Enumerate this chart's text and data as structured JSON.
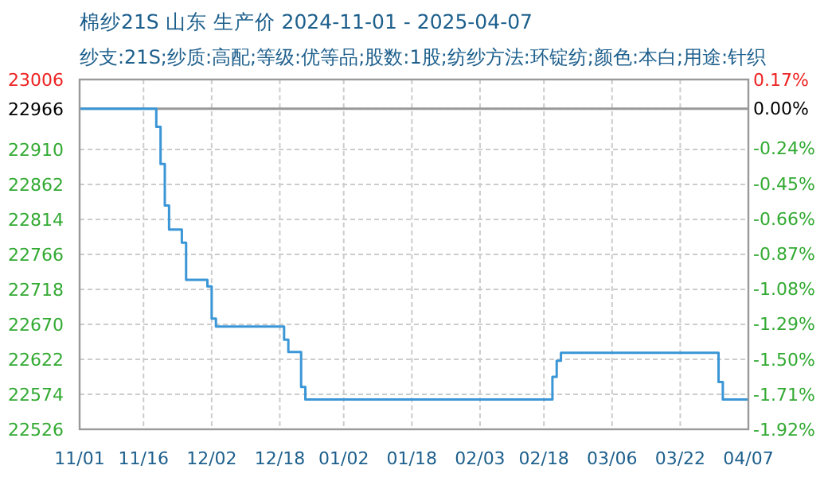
{
  "chart_data": {
    "type": "step",
    "title": "棉纱21S 山东 生产价 2024-11-01 - 2025-04-07",
    "subtitle": "纱支:21S;纱质:高配;等级:优等品;股数:1股;纺纱方法:环锭纺;颜色:本白;用途:针织",
    "x": [
      "2024-11-01",
      "2024-11-19",
      "2024-11-20",
      "2024-11-21",
      "2024-11-22",
      "2024-11-25",
      "2024-11-26",
      "2024-12-01",
      "2024-12-02",
      "2024-12-03",
      "2024-12-19",
      "2024-12-20",
      "2024-12-23",
      "2024-12-24",
      "2025-02-20",
      "2025-02-21",
      "2025-02-22",
      "2025-03-31",
      "2025-04-01",
      "2025-04-07"
    ],
    "values": [
      22966,
      22941,
      22890,
      22833,
      22800,
      22782,
      22731,
      22722,
      22678,
      22667,
      22649,
      22632,
      22584,
      22567,
      22598,
      22620,
      22631,
      22591,
      22567,
      22567
    ],
    "color": "#3a96d6",
    "xlim": [
      "2024-11-01",
      "2025-04-07"
    ],
    "xticks": [
      {
        "value": "2024-11-01",
        "label": "11/01"
      },
      {
        "value": "2024-11-16",
        "label": "11/16"
      },
      {
        "value": "2024-12-02",
        "label": "12/02"
      },
      {
        "value": "2024-12-18",
        "label": "12/18"
      },
      {
        "value": "2025-01-02",
        "label": "01/02"
      },
      {
        "value": "2025-01-18",
        "label": "01/18"
      },
      {
        "value": "2025-02-03",
        "label": "02/03"
      },
      {
        "value": "2025-02-18",
        "label": "02/18"
      },
      {
        "value": "2025-03-06",
        "label": "03/06"
      },
      {
        "value": "2025-03-22",
        "label": "03/22"
      },
      {
        "value": "2025-04-07",
        "label": "04/07"
      }
    ],
    "ylim": [
      22526,
      23006
    ],
    "yticks": [
      22526,
      22574,
      22622,
      22670,
      22718,
      22766,
      22814,
      22862,
      22910,
      22966,
      23006
    ],
    "y2lim": [
      -1.92,
      0.17
    ],
    "y2ticks": [
      {
        "value": -1.92,
        "label": "-1.92%"
      },
      {
        "value": -1.71,
        "label": "-1.71%"
      },
      {
        "value": -1.5,
        "label": "-1.50%"
      },
      {
        "value": -1.29,
        "label": "-1.29%"
      },
      {
        "value": -1.08,
        "label": "-1.08%"
      },
      {
        "value": -0.87,
        "label": "-0.87%"
      },
      {
        "value": -0.66,
        "label": "-0.66%"
      },
      {
        "value": -0.45,
        "label": "-0.45%"
      },
      {
        "value": -0.24,
        "label": "-0.24%"
      },
      {
        "value": 0,
        "label": "0.00%"
      },
      {
        "value": 0.17,
        "label": "0.17%"
      }
    ],
    "ref_lines": [
      {
        "axis": "y",
        "value": 22966,
        "color": "#999999"
      }
    ],
    "grid": true
  }
}
